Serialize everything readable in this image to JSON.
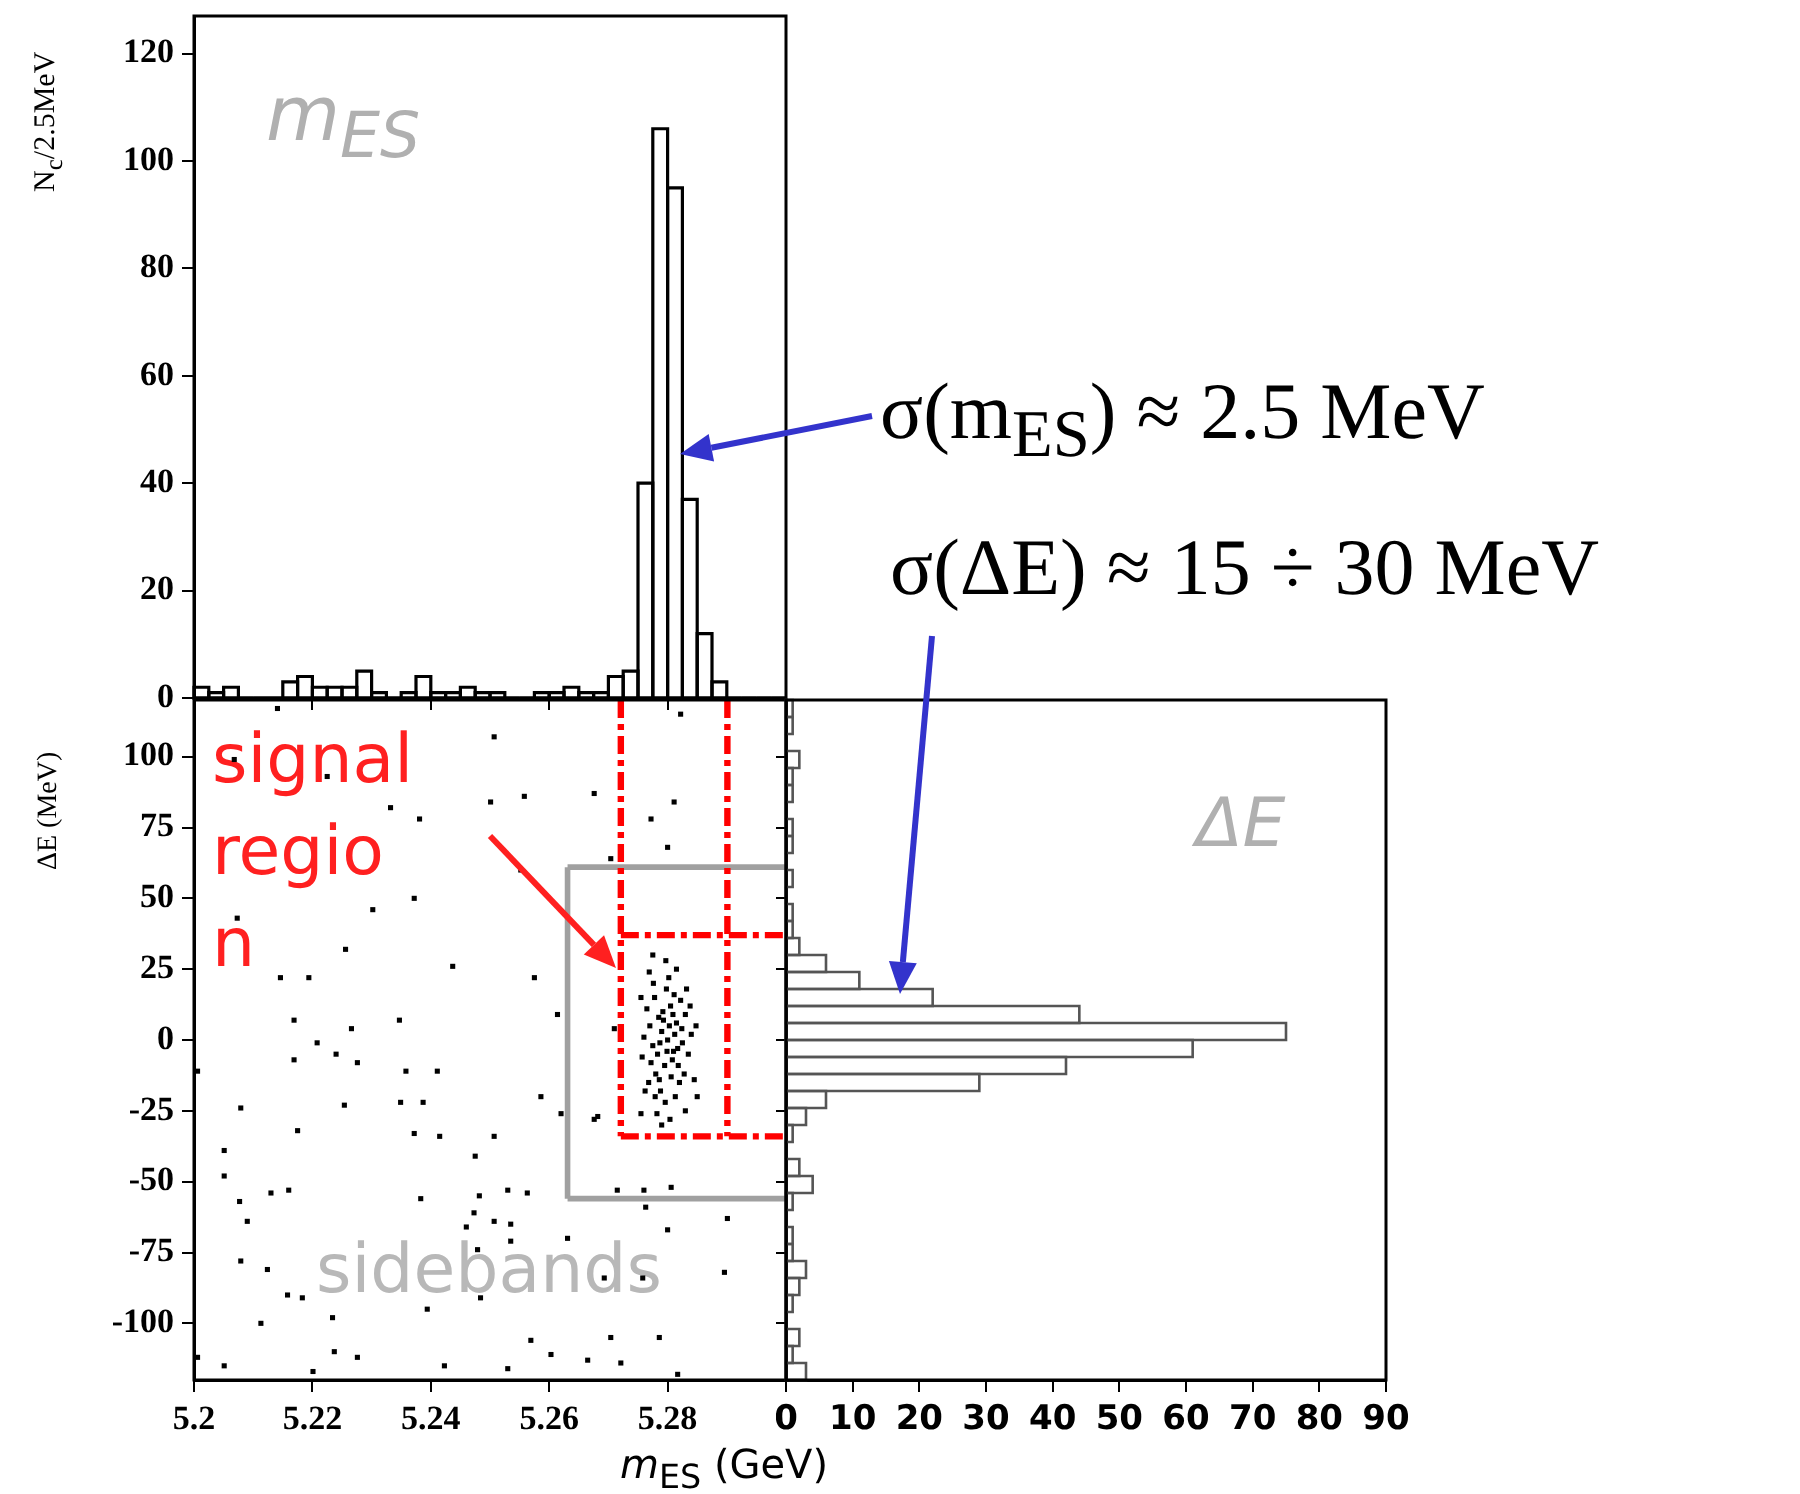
{
  "chart_data": [
    {
      "type": "histogram",
      "ylabel": "N$_{c}$/2.5MeV",
      "annotations": [
        "m$_{ES}$",
        "σ(m$_{ES}$) ≈ 2.5 MeV"
      ],
      "bins": [
        5.2,
        5.2025,
        5.205,
        5.2075,
        5.21,
        5.2125,
        5.215,
        5.2175,
        5.22,
        5.2225,
        5.225,
        5.2275,
        5.23,
        5.2325,
        5.235,
        5.2375,
        5.24,
        5.2425,
        5.245,
        5.2475,
        5.25,
        5.2525,
        5.255,
        5.2575,
        5.26,
        5.2625,
        5.265,
        5.2675,
        5.27,
        5.2725,
        5.275,
        5.2775,
        5.28,
        5.2825,
        5.285,
        5.2875,
        5.29,
        5.2925,
        5.295,
        5.2975,
        5.3
      ],
      "values": [
        2,
        1,
        2,
        0,
        0,
        0,
        3,
        4,
        2,
        2,
        2,
        5,
        1,
        0,
        1,
        4,
        1,
        1,
        2,
        1,
        1,
        0,
        0,
        1,
        1,
        2,
        1,
        1,
        4,
        5,
        40,
        106,
        95,
        37,
        12,
        3,
        0,
        0,
        0,
        0
      ],
      "color": "#000000",
      "xlim": [
        5.2,
        5.3
      ],
      "ylim": [
        0,
        127
      ],
      "yticks": [
        0,
        20,
        40,
        60,
        80,
        100,
        120
      ],
      "tick_labels": "y",
      "grid": false,
      "legend": false
    },
    {
      "type": "scatter",
      "xlabel": "m$_{ES}$ (GeV)",
      "ylabel": "ΔE (MeV)",
      "annotations": [
        "signal\nregio\nn",
        "sidebands"
      ],
      "x": [
        5.2068,
        5.2141,
        5.2225,
        5.2332,
        5.2381,
        5.2501,
        5.2558,
        5.2676,
        5.2772,
        5.2811,
        5.2822,
        5.2507,
        5.2704,
        5.28,
        5.2552,
        5.2302,
        5.2372,
        5.2073,
        5.2194,
        5.2146,
        5.2256,
        5.2437,
        5.2347,
        5.2169,
        5.2208,
        5.2266,
        5.2169,
        5.2276,
        5.224,
        5.2411,
        5.2358,
        5.2006,
        5.2079,
        5.2254,
        5.2175,
        5.2372,
        5.2415,
        5.2507,
        5.2349,
        5.2387,
        5.2586,
        5.262,
        5.2682,
        5.2051,
        5.2051,
        5.2077,
        5.209,
        5.213,
        5.216,
        5.2383,
        5.2475,
        5.2482,
        5.253,
        5.2563,
        5.2473,
        5.2507,
        5.2535,
        5.246,
        5.2479,
        5.2535,
        5.2631,
        5.2715,
        5.276,
        5.2806,
        5.2763,
        5.28,
        5.2901,
        5.2896,
        5.2693,
        5.2758,
        5.2079,
        5.2124,
        5.2158,
        5.2183,
        5.2113,
        5.2234,
        5.2394,
        5.2484,
        5.2569,
        5.2704,
        5.2786,
        5.2237,
        5.2276,
        5.2423,
        5.2603,
        5.2665,
        5.2721,
        5.2817,
        5.2006,
        5.2051,
        5.2201,
        5.253,
        5.2614,
        5.271,
        5.2575,
        5.2755,
        5.2676,
        5.28,
        5.279,
        5.281,
        5.2785,
        5.2815,
        5.2795,
        5.2805,
        5.2775,
        5.2825,
        5.278,
        5.282,
        5.2798,
        5.277,
        5.283,
        5.2788,
        5.2808,
        5.2792,
        5.2812,
        5.2783,
        5.2818,
        5.2765,
        5.2835,
        5.2802,
        5.2796,
        5.2778,
        5.2822,
        5.2772,
        5.2828,
        5.2803,
        5.2787,
        5.2813,
        5.2768,
        5.284,
        5.276,
        5.2797,
        5.2815,
        5.2782,
        5.2845,
        5.2757,
        5.2806,
        5.2793,
        5.2811,
        5.2776,
        5.2832,
        5.2786,
        5.2824,
        5.2799,
        5.2809,
        5.2779,
        5.2838,
        5.2762,
        5.285,
        5.279,
        5.2775,
        5.283,
        5.2755,
        5.2848,
        5.2769,
        5.2804,
        5.2817
      ],
      "values": [
        99,
        117,
        93,
        82,
        78,
        84,
        86,
        87,
        78,
        84,
        115,
        107,
        64,
        68,
        60,
        46,
        50,
        43,
        22,
        22,
        32,
        26,
        7,
        7,
        -1,
        4,
        -7,
        -8,
        -5,
        -11,
        -11,
        -11,
        -24,
        -23,
        -32,
        -33,
        -34,
        -34,
        -22,
        -22,
        -20,
        -26,
        -27,
        -39,
        -48,
        -57,
        -64,
        -54,
        -53,
        -56,
        -41,
        -55,
        -53,
        -54,
        -61,
        -64,
        -65,
        -66,
        -74,
        -71,
        -70,
        -53,
        -53,
        -52,
        -59,
        -67,
        -63,
        -82,
        -84,
        -84,
        -78,
        -81,
        -90,
        -91,
        -100,
        -98,
        -95,
        -91,
        -106,
        -105,
        -105,
        -110,
        -112,
        -115,
        -111,
        -113,
        -114,
        -118,
        -112,
        -115,
        -117,
        -116,
        9,
        4,
        22,
        -26,
        -28,
        0,
        3,
        -4,
        8,
        6,
        -9,
        12,
        -2,
        -1,
        -12,
        -15,
        18,
        5,
        9,
        -18,
        -7,
        10,
        2,
        -5,
        -9,
        11,
        -5,
        22,
        -22,
        15,
        14,
        -8,
        -12,
        5,
        -1,
        -20,
        -15,
        2,
        1,
        28,
        25,
        -26,
        -14,
        -6,
        -13,
        7,
        16,
        20,
        18,
        -14,
        4,
        -4,
        9,
        -20,
        12,
        -18,
        -20,
        -30,
        30,
        -25,
        15,
        5,
        24,
        -28,
        -3
      ],
      "color": "#000000",
      "marker": "square",
      "xlim": [
        5.2,
        5.3
      ],
      "xticks": [
        5.2,
        5.22,
        5.24,
        5.26,
        5.28
      ],
      "ylim": [
        -120,
        120
      ],
      "yticks": [
        -100,
        -75,
        -50,
        -25,
        0,
        25,
        50,
        75,
        100
      ],
      "ref_lines": [
        {
          "axis": "x",
          "value": 5.2631,
          "color": "#a0a0a0",
          "line_style": "solid"
        },
        {
          "axis": "y",
          "value": 61,
          "color": "#a0a0a0",
          "line_style": "solid"
        },
        {
          "axis": "y",
          "value": -56,
          "color": "#a0a0a0",
          "line_style": "solid"
        },
        {
          "axis": "x",
          "value": 5.2721,
          "color": "#ff0000",
          "line_style": "dashed"
        },
        {
          "axis": "x",
          "value": 5.2901,
          "color": "#ff0000",
          "line_style": "dashed"
        },
        {
          "axis": "y",
          "value": 37,
          "color": "#ff0000",
          "line_style": "dashed"
        },
        {
          "axis": "y",
          "value": -34,
          "color": "#ff0000",
          "line_style": "dashed"
        }
      ],
      "grid": false,
      "legend": false
    },
    {
      "type": "histogram",
      "orientation": "horizontal",
      "annotations": [
        "ΔE",
        "σ(ΔE) ≈ 15 ÷ 30 MeV"
      ],
      "bins": [
        -120,
        -114,
        -108,
        -102,
        -96,
        -90,
        -84,
        -78,
        -72,
        -66,
        -60,
        -54,
        -48,
        -42,
        -36,
        -30,
        -24,
        -18,
        -12,
        -6,
        0,
        6,
        12,
        18,
        24,
        30,
        36,
        42,
        48,
        54,
        60,
        66,
        72,
        78,
        84,
        90,
        96,
        102,
        108,
        114,
        120
      ],
      "values": [
        3,
        1,
        2,
        0,
        1,
        2,
        3,
        1,
        1,
        0,
        1,
        4,
        2,
        0,
        1,
        3,
        6,
        29,
        42,
        61,
        75,
        44,
        22,
        11,
        6,
        2,
        1,
        1,
        0,
        1,
        0,
        1,
        1,
        0,
        1,
        1,
        2,
        0,
        1,
        1
      ],
      "color": "#555555",
      "xlim": [
        0,
        90
      ],
      "xticks": [
        0,
        10,
        20,
        30,
        40,
        50,
        60,
        70,
        80,
        90
      ],
      "ylim": [
        -120,
        120
      ],
      "yticks": [
        {
          "value": -100,
          "label": null
        },
        {
          "value": -75,
          "label": null
        },
        {
          "value": -50,
          "label": null
        },
        {
          "value": -25,
          "label": null
        },
        {
          "value": 0,
          "label": null
        },
        {
          "value": 25,
          "label": null
        },
        {
          "value": 50,
          "label": null
        },
        {
          "value": 75,
          "label": null
        },
        {
          "value": 100,
          "label": null
        }
      ],
      "tick_labels": "x",
      "grid": false,
      "legend": false
    }
  ]
}
